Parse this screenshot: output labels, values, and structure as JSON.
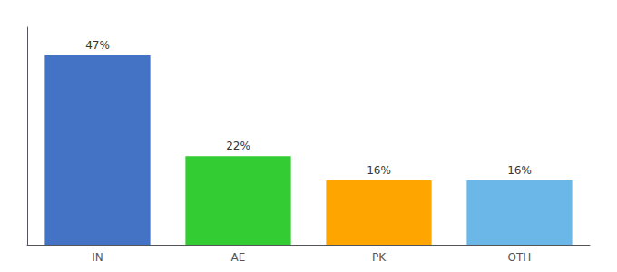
{
  "chart_data": {
    "type": "bar",
    "categories": [
      "IN",
      "AE",
      "PK",
      "OTH"
    ],
    "values": [
      47,
      22,
      16,
      16
    ],
    "value_labels": [
      "47%",
      "22%",
      "16%",
      "16%"
    ],
    "data_labels": true,
    "colors": [
      "#4472C4",
      "#33CC33",
      "#FFA500",
      "#6BB8E8"
    ],
    "ylim": [
      0,
      54
    ],
    "tick_labels": "x",
    "grid": false
  }
}
